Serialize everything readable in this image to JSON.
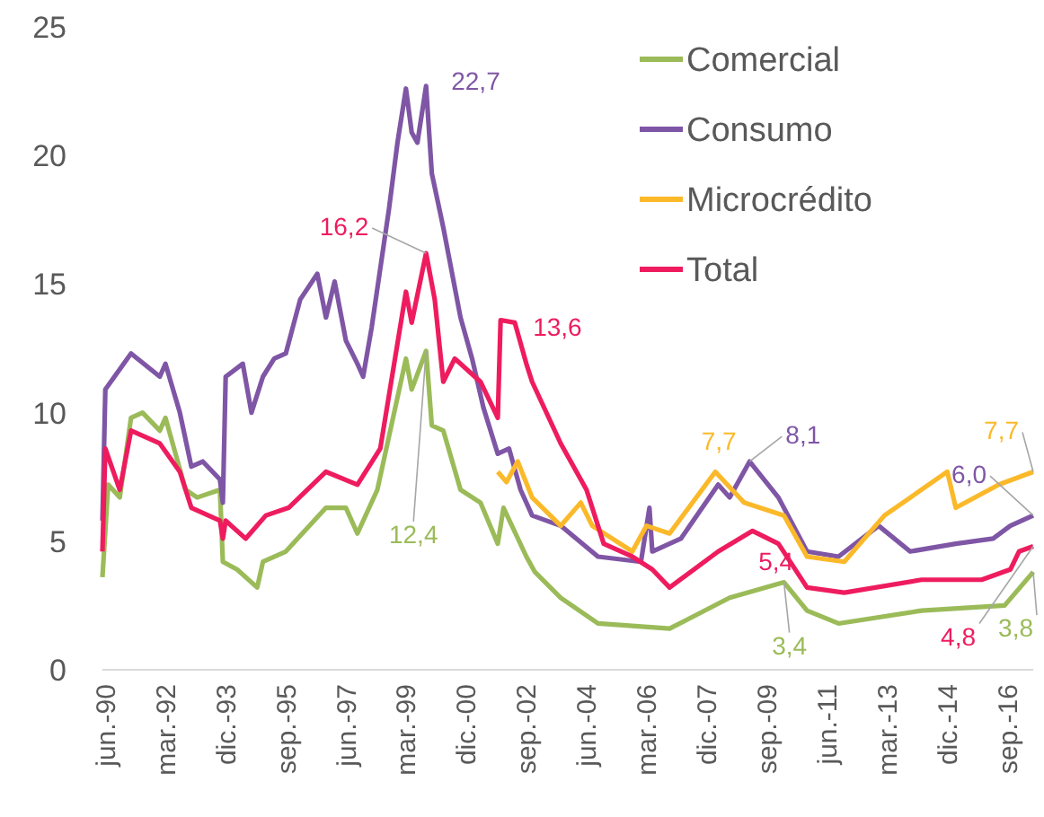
{
  "chart_data": {
    "type": "line",
    "xlim": [
      "1990-05",
      "2017-06"
    ],
    "ylim": [
      0,
      25
    ],
    "yticks": [
      0,
      5,
      10,
      15,
      20,
      25
    ],
    "xticks": [
      {
        "value": "1990-06",
        "label": "jun.-90"
      },
      {
        "value": "1992-03",
        "label": "mar.-92"
      },
      {
        "value": "1993-12",
        "label": "dic.-93"
      },
      {
        "value": "1995-09",
        "label": "sep.-95"
      },
      {
        "value": "1997-06",
        "label": "jun.-97"
      },
      {
        "value": "1999-03",
        "label": "mar.-99"
      },
      {
        "value": "2000-12",
        "label": "dic.-00"
      },
      {
        "value": "2002-09",
        "label": "sep.-02"
      },
      {
        "value": "2004-06",
        "label": "jun.-04"
      },
      {
        "value": "2006-03",
        "label": "mar.-06"
      },
      {
        "value": "2007-12",
        "label": "dic.-07"
      },
      {
        "value": "2009-09",
        "label": "sep.-09"
      },
      {
        "value": "2011-06",
        "label": "jun.-11"
      },
      {
        "value": "2013-03",
        "label": "mar.-13"
      },
      {
        "value": "2014-12",
        "label": "dic.-14"
      },
      {
        "value": "2016-09",
        "label": "sep.-16"
      }
    ],
    "legend": "top right",
    "marker": "none",
    "line_style": "solid",
    "series": [
      {
        "name": "Comercial",
        "color": "#9bbb59",
        "x": [
          "1990-05",
          "1990-07",
          "1990-11",
          "1991-03",
          "1991-07",
          "1992-01",
          "1992-03",
          "1992-10",
          "1993-02",
          "1993-10",
          "1993-11",
          "1994-04",
          "1994-11",
          "1995-01",
          "1995-09",
          "1996-11",
          "1997-06",
          "1997-10",
          "1998-05",
          "1999-03",
          "1999-05",
          "1999-10",
          "1999-12",
          "2000-04",
          "2000-10",
          "2001-05",
          "2001-11",
          "2002-01",
          "2002-09",
          "2002-12",
          "2003-09",
          "2004-10",
          "2006-11",
          "2008-08",
          "2010-03",
          "2010-11",
          "2011-10",
          "2014-03",
          "2016-08",
          "2017-06"
        ],
        "values": [
          3.6,
          7.2,
          6.7,
          9.8,
          10.0,
          9.3,
          9.8,
          7.0,
          6.7,
          7.0,
          4.2,
          3.9,
          3.2,
          4.2,
          4.6,
          6.3,
          6.3,
          5.3,
          7.0,
          12.1,
          10.9,
          12.4,
          9.5,
          9.3,
          7.0,
          6.5,
          4.9,
          6.3,
          4.4,
          3.8,
          2.8,
          1.8,
          1.6,
          2.8,
          3.4,
          2.3,
          1.8,
          2.3,
          2.5,
          3.8
        ]
      },
      {
        "name": "Consumo",
        "color": "#7f56a5",
        "x": [
          "1990-05",
          "1990-06",
          "1991-03",
          "1992-01",
          "1992-03",
          "1992-08",
          "1992-12",
          "1993-04",
          "1993-10",
          "1993-11",
          "1993-12",
          "1994-06",
          "1994-09",
          "1995-01",
          "1995-05",
          "1995-09",
          "1996-02",
          "1996-08",
          "1996-11",
          "1997-02",
          "1997-06",
          "1997-10",
          "1997-12",
          "1998-03",
          "1998-09",
          "1998-12",
          "1999-03",
          "1999-05",
          "1999-07",
          "1999-10",
          "1999-12",
          "2000-04",
          "2000-10",
          "2001-02",
          "2001-06",
          "2001-11",
          "2002-03",
          "2002-07",
          "2002-11",
          "2003-09",
          "2004-10",
          "2006-01",
          "2006-04",
          "2006-05",
          "2007-03",
          "2008-04",
          "2008-08",
          "2009-03",
          "2010-01",
          "2010-11",
          "2011-10",
          "2012-12",
          "2013-11",
          "2015-03",
          "2016-04",
          "2016-10",
          "2017-06"
        ],
        "values": [
          5.8,
          10.9,
          12.3,
          11.4,
          11.9,
          10.0,
          7.9,
          8.1,
          7.4,
          6.5,
          11.4,
          11.9,
          10.0,
          11.4,
          12.1,
          12.3,
          14.4,
          15.4,
          13.7,
          15.1,
          12.8,
          11.9,
          11.4,
          13.3,
          17.9,
          20.5,
          22.6,
          20.9,
          20.5,
          22.7,
          19.3,
          17.2,
          13.7,
          12.1,
          10.2,
          8.4,
          8.6,
          7.0,
          6.0,
          5.6,
          4.4,
          4.2,
          6.3,
          4.6,
          5.1,
          7.2,
          6.7,
          8.1,
          6.7,
          4.6,
          4.4,
          5.6,
          4.6,
          4.9,
          5.1,
          5.6,
          6.0
        ]
      },
      {
        "name": "Microcrédito",
        "color": "#fbb92a",
        "x": [
          "2001-11",
          "2002-02",
          "2002-06",
          "2002-11",
          "2003-09",
          "2004-04",
          "2004-08",
          "2005-10",
          "2006-03",
          "2006-11",
          "2008-03",
          "2009-01",
          "2010-03",
          "2010-11",
          "2011-12",
          "2013-02",
          "2014-12",
          "2015-03",
          "2016-06",
          "2017-06"
        ],
        "values": [
          7.7,
          7.3,
          8.1,
          6.7,
          5.6,
          6.5,
          5.6,
          4.6,
          5.6,
          5.3,
          7.7,
          6.5,
          6.0,
          4.4,
          4.2,
          6.0,
          7.7,
          6.3,
          7.2,
          7.7
        ]
      },
      {
        "name": "Total",
        "color": "#ee1c5f",
        "x": [
          "1990-05",
          "1990-06",
          "1990-11",
          "1991-03",
          "1992-01",
          "1992-08",
          "1992-12",
          "1993-10",
          "1993-11",
          "1993-12",
          "1994-07",
          "1995-02",
          "1995-10",
          "1996-11",
          "1997-10",
          "1998-06",
          "1999-03",
          "1999-05",
          "1999-10",
          "2000-01",
          "2000-04",
          "2000-08",
          "2001-05",
          "2001-11",
          "2001-12",
          "2002-05",
          "2002-09",
          "2002-11",
          "2003-09",
          "2004-06",
          "2004-12",
          "2005-10",
          "2006-05",
          "2006-11",
          "2008-04",
          "2009-04",
          "2010-01",
          "2010-11",
          "2011-12",
          "2014-03",
          "2015-12",
          "2016-10",
          "2017-01",
          "2017-06"
        ],
        "values": [
          4.6,
          8.6,
          7.0,
          9.3,
          8.8,
          7.7,
          6.3,
          5.8,
          5.1,
          5.8,
          5.1,
          6.0,
          6.3,
          7.7,
          7.2,
          8.6,
          14.7,
          13.5,
          16.2,
          14.4,
          11.2,
          12.1,
          11.2,
          9.8,
          13.6,
          13.5,
          11.9,
          11.2,
          8.8,
          7.0,
          4.9,
          4.4,
          3.9,
          3.2,
          4.6,
          5.4,
          4.9,
          3.2,
          3.0,
          3.5,
          3.5,
          3.9,
          4.6,
          4.8
        ]
      }
    ],
    "annotations": [
      {
        "text": "22,7",
        "x": "1999-10",
        "y": 22.7
      },
      {
        "text": "16,2",
        "x": "1999-10",
        "y": 16.2
      },
      {
        "text": "12,4",
        "x": "1999-10",
        "y": 12.4
      },
      {
        "text": "13,6",
        "x": "2001-12",
        "y": 13.6
      },
      {
        "text": "7,7",
        "x": "2008-03",
        "y": 7.7
      },
      {
        "text": "8,1",
        "x": "2009-03",
        "y": 8.1
      },
      {
        "text": "5,4",
        "x": "2009-04",
        "y": 5.4
      },
      {
        "text": "3,4",
        "x": "2010-03",
        "y": 3.4
      },
      {
        "text": "6,0",
        "x": "2017-06",
        "y": 6.0
      },
      {
        "text": "7,7",
        "x": "2017-06",
        "y": 7.7
      },
      {
        "text": "4,8",
        "x": "2017-06",
        "y": 4.8
      },
      {
        "text": "3,8",
        "x": "2017-06",
        "y": 3.8
      }
    ]
  }
}
